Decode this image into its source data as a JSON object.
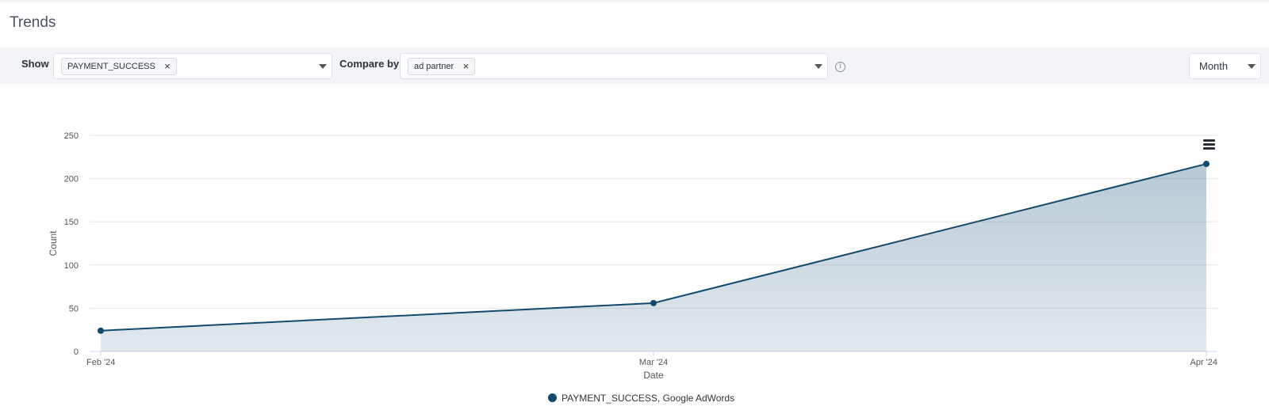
{
  "page": {
    "title": "Trends"
  },
  "filters": {
    "show_label": "Show",
    "show_chip": "PAYMENT_SUCCESS",
    "compare_label": "Compare by",
    "compare_chip": "ad partner",
    "chip_remove": "×",
    "interval": "Month",
    "info_icon": "info-icon"
  },
  "chart_data": {
    "type": "area",
    "x": [
      "Feb '24",
      "Mar '24",
      "Apr '24"
    ],
    "series": [
      {
        "name": "PAYMENT_SUCCESS, Google AdWords",
        "values": [
          24,
          56,
          217
        ],
        "color": "#124a6e"
      }
    ],
    "xlabel": "Date",
    "ylabel": "Count",
    "ylim": [
      0,
      250
    ],
    "yticks": [
      0,
      50,
      100,
      150,
      200,
      250
    ],
    "grid": true,
    "legend": "bottom-center"
  },
  "legend": {
    "label": "PAYMENT_SUCCESS, Google AdWords"
  }
}
